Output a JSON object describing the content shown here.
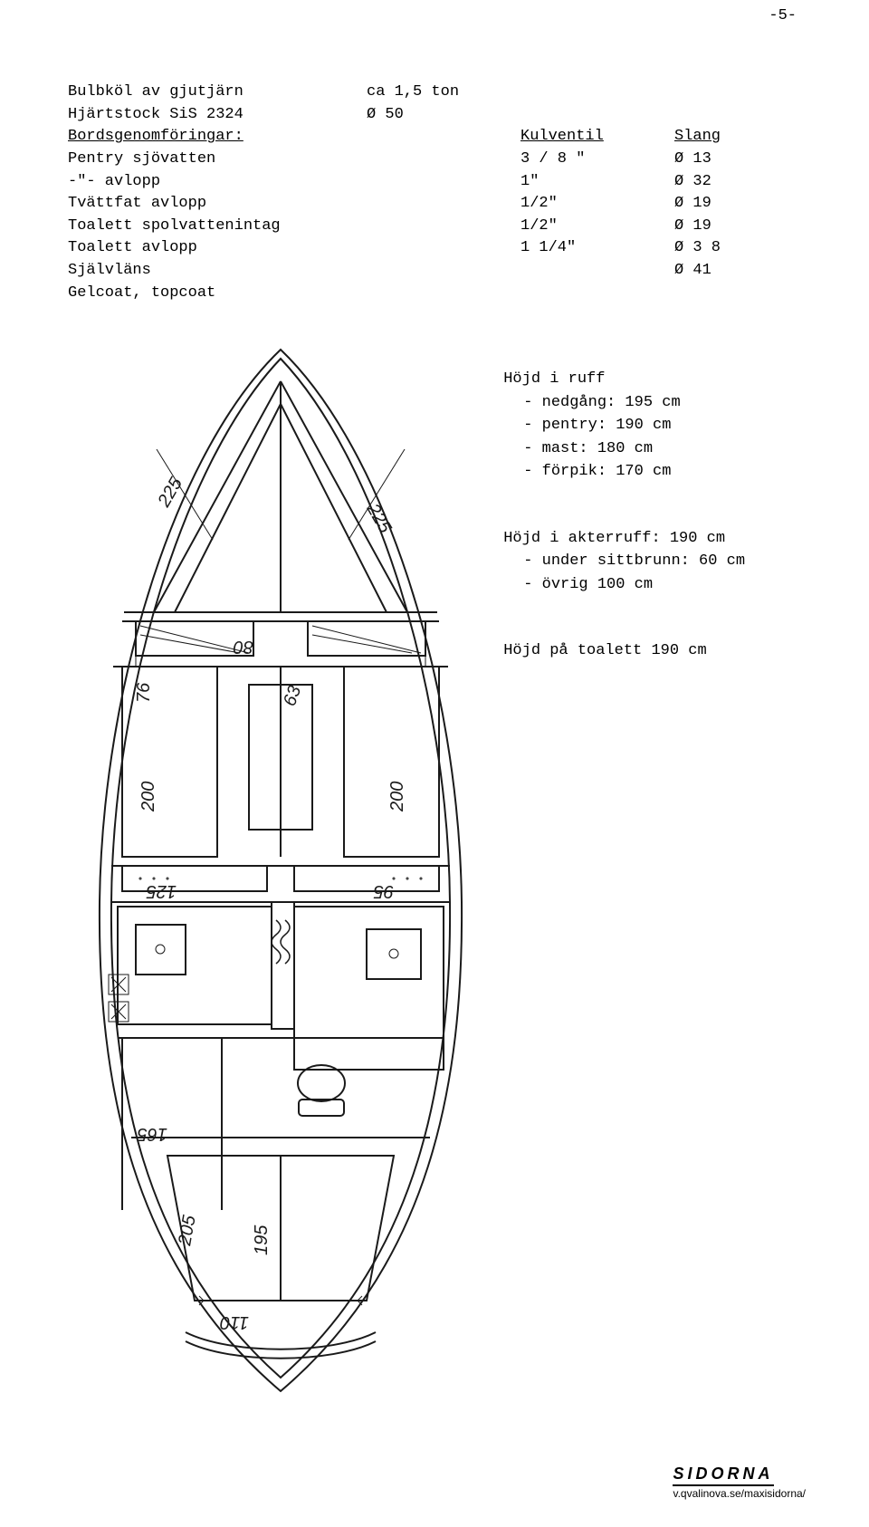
{
  "page_number": "-5-",
  "specs": {
    "rows": [
      {
        "c1": "Bulbköl av gjutjärn",
        "c2": "ca 1,5 ton",
        "c3": "",
        "c4": ""
      },
      {
        "c1": "Hjärtstock SiS 2324",
        "c2": "Ø 50",
        "c3": "",
        "c4": ""
      },
      {
        "c1": "Bordsgenomföringar:",
        "c2": "",
        "c3": "Kulventil",
        "c4": "Slang",
        "c1_underline": true,
        "c3_underline": true,
        "c4_underline": true
      },
      {
        "c1": "Pentry sjövatten",
        "c2": "",
        "c3": "3 / 8 \"",
        "c4": "Ø 13"
      },
      {
        "c1": " -\"-   avlopp",
        "c2": "",
        "c3": "1\"",
        "c4": "Ø 32"
      },
      {
        "c1": "Tvättfat avlopp",
        "c2": "",
        "c3": "1/2\"",
        "c4": "Ø 19"
      },
      {
        "c1": "Toalett spolvattenintag",
        "c2": "",
        "c3": "1/2\"",
        "c4": " Ø 19"
      },
      {
        "c1": "Toalett avlopp",
        "c2": "",
        "c3": "1 1/4\"",
        "c4": "Ø 3 8"
      },
      {
        "c1": "Självläns",
        "c2": "",
        "c3": "",
        "c4": "Ø 41"
      },
      {
        "c1": "Gelcoat, topcoat",
        "c2": "",
        "c3": "",
        "c4": ""
      }
    ]
  },
  "ruff": {
    "title": "Höjd i ruff",
    "lines": [
      "- nedgång: 195 cm",
      "- pentry: 190 cm",
      "- mast: 180 cm",
      "- förpik: 170 cm"
    ]
  },
  "akterruff": {
    "title": "Höjd i akterruff: 190 cm",
    "lines": [
      "- under sittbrunn: 60 cm",
      "- övrig 100 cm"
    ]
  },
  "toalett": "Höjd på toalett 190 cm",
  "diagram": {
    "annotations": {
      "a225l": "225",
      "a225r": "225",
      "a80": "80",
      "a76": "76",
      "a63": "63",
      "a200l": "200",
      "a200r": "200",
      "a125": "125",
      "a95": "95",
      "a165": "165",
      "a205": "205",
      "a195": "195",
      "a110": "110"
    },
    "stroke": "#1a1a1a",
    "bg": "#ffffff"
  },
  "footer": {
    "logo": "SIDORNA",
    "url": "v.qvalinova.se/maxisidorna/"
  }
}
